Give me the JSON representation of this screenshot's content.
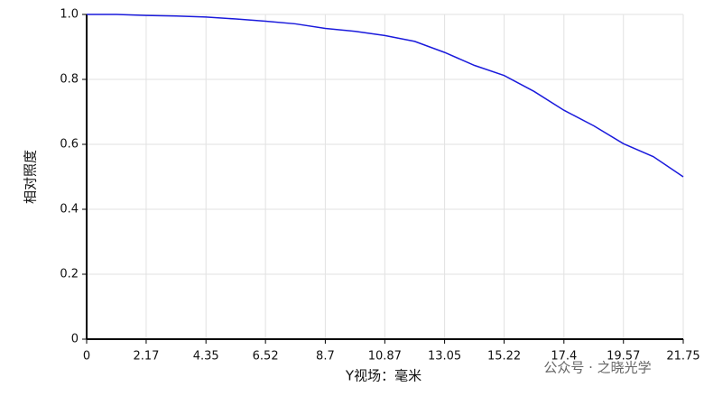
{
  "chart_data": {
    "type": "line",
    "x_label": "Y视场：毫米",
    "y_label": "相对照度",
    "watermark": "公众号 · 之晓光学",
    "x": [
      0,
      1.09,
      2.17,
      3.26,
      4.35,
      5.44,
      6.52,
      7.61,
      8.7,
      9.79,
      10.87,
      11.96,
      13.05,
      14.14,
      15.22,
      16.31,
      17.4,
      18.49,
      19.57,
      20.66,
      21.75
    ],
    "series": [
      {
        "color": "#1a1adc",
        "values": [
          1.0,
          1.0,
          0.997,
          0.995,
          0.992,
          0.986,
          0.979,
          0.971,
          0.957,
          0.948,
          0.935,
          0.917,
          0.883,
          0.843,
          0.812,
          0.763,
          0.705,
          0.657,
          0.602,
          0.562,
          0.5
        ]
      }
    ],
    "xlim": [
      0,
      21.75
    ],
    "xticks": [
      0,
      2.17,
      4.35,
      6.52,
      8.7,
      10.87,
      13.05,
      15.22,
      17.4,
      19.57,
      21.75
    ],
    "ylim": [
      0,
      1
    ],
    "yticks": [
      0,
      0.2,
      0.4,
      0.6,
      0.8,
      {
        "value": 1,
        "label": "1.0"
      }
    ],
    "grid": true
  }
}
